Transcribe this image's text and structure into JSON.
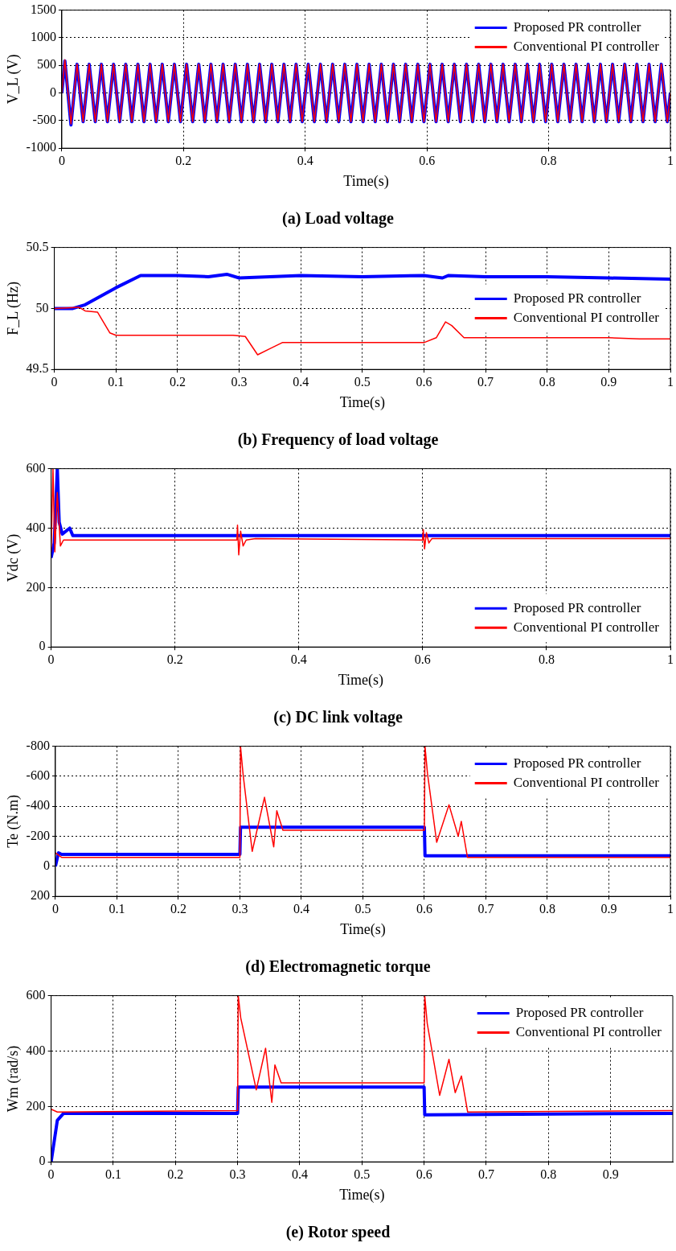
{
  "chart_data": [
    {
      "type": "line",
      "title": "(a) Load voltage",
      "xlabel": "Time(s)",
      "ylabel": "V_L (V)",
      "xlim": [
        0,
        1
      ],
      "ylim": [
        -1000,
        1500
      ],
      "xticks": [
        0,
        0.2,
        0.4,
        0.6,
        0.8,
        1
      ],
      "yticks": [
        -1000,
        -500,
        0,
        500,
        1000,
        1500
      ],
      "grid": true,
      "legend": "top right",
      "x": [
        0,
        0.005,
        0.015,
        0.025,
        0.035,
        0.045,
        0.055,
        0.065,
        0.075,
        0.085,
        0.095,
        0.105,
        0.115,
        0.125,
        0.135,
        0.145,
        0.155,
        0.165,
        0.175,
        0.185,
        0.195,
        0.205,
        0.215,
        0.225,
        0.235,
        0.245,
        0.255,
        0.265,
        0.275,
        0.285,
        0.295,
        0.305,
        0.315,
        0.325,
        0.335,
        0.345,
        0.355,
        0.365,
        0.375,
        0.385,
        0.395,
        0.405,
        0.415,
        0.425,
        0.435,
        0.445,
        0.455,
        0.465,
        0.475,
        0.485,
        0.495,
        0.505,
        0.515,
        0.525,
        0.535,
        0.545,
        0.555,
        0.565,
        0.575,
        0.585,
        0.595,
        0.605,
        0.615,
        0.625,
        0.635,
        0.645,
        0.655,
        0.665,
        0.675,
        0.685,
        0.695,
        0.705,
        0.715,
        0.725,
        0.735,
        0.745,
        0.755,
        0.765,
        0.775,
        0.785,
        0.795,
        0.805,
        0.815,
        0.825,
        0.835,
        0.845,
        0.855,
        0.865,
        0.875,
        0.885,
        0.895,
        0.905,
        0.915,
        0.925,
        0.935,
        0.945,
        0.955,
        0.965,
        0.975,
        0.985,
        0.995,
        1
      ],
      "series": [
        {
          "name": "Proposed PR controller",
          "color": "#0000ff",
          "values": [
            0,
            580,
            -580,
            520,
            -520,
            520,
            -520,
            520,
            -520,
            520,
            -520,
            520,
            -520,
            520,
            -520,
            520,
            -520,
            520,
            -520,
            520,
            -520,
            520,
            -520,
            520,
            -520,
            520,
            -520,
            520,
            -520,
            520,
            -520,
            520,
            -520,
            520,
            -520,
            520,
            -520,
            520,
            -520,
            520,
            -520,
            520,
            -520,
            520,
            -520,
            520,
            -520,
            520,
            -520,
            520,
            -520,
            520,
            -520,
            520,
            -520,
            520,
            -520,
            520,
            -520,
            520,
            -520,
            520,
            -520,
            520,
            -520,
            520,
            -520,
            520,
            -520,
            520,
            -520,
            520,
            -520,
            520,
            -520,
            520,
            -520,
            520,
            -520,
            520,
            -520,
            520,
            -520,
            520,
            -520,
            520,
            -520,
            520,
            -520,
            520,
            -520,
            520,
            -520,
            520,
            -520,
            520,
            -520,
            520,
            -520,
            520,
            -520,
            0
          ]
        },
        {
          "name": "Conventional PI controller",
          "color": "#ff0000",
          "values": [
            0,
            600,
            -560,
            520,
            -520,
            520,
            -520,
            520,
            -520,
            520,
            -520,
            520,
            -520,
            520,
            -520,
            520,
            -520,
            520,
            -520,
            520,
            -520,
            520,
            -520,
            520,
            -520,
            520,
            -520,
            520,
            -520,
            520,
            -520,
            520,
            -520,
            520,
            -520,
            520,
            -520,
            520,
            -520,
            520,
            -520,
            520,
            -520,
            520,
            -520,
            520,
            -520,
            520,
            -520,
            520,
            -520,
            520,
            -520,
            520,
            -520,
            520,
            -520,
            520,
            -520,
            520,
            -520,
            520,
            -520,
            520,
            -520,
            520,
            -520,
            520,
            -520,
            520,
            -520,
            520,
            -520,
            520,
            -520,
            520,
            -520,
            520,
            -520,
            520,
            -520,
            520,
            -520,
            520,
            -520,
            520,
            -520,
            520,
            -520,
            520,
            -520,
            520,
            -520,
            520,
            -520,
            520,
            -520,
            520,
            -520,
            520,
            -520,
            0
          ]
        }
      ]
    },
    {
      "type": "line",
      "title": "(b) Frequency of load voltage",
      "xlabel": "Time(s)",
      "ylabel": "F_L (Hz)",
      "xlim": [
        0,
        1
      ],
      "ylim": [
        49.5,
        50.5
      ],
      "xticks": [
        0,
        0.1,
        0.2,
        0.3,
        0.4,
        0.5,
        0.6,
        0.7,
        0.8,
        0.9,
        1
      ],
      "yticks": [
        49.5,
        50,
        50.5
      ],
      "grid": true,
      "legend": "right",
      "series": [
        {
          "name": "Proposed PR controller",
          "color": "#0000ff",
          "x": [
            0,
            0.03,
            0.05,
            0.1,
            0.14,
            0.2,
            0.25,
            0.28,
            0.3,
            0.4,
            0.5,
            0.6,
            0.63,
            0.64,
            0.7,
            0.8,
            0.9,
            1
          ],
          "values": [
            50,
            50,
            50.03,
            50.17,
            50.27,
            50.27,
            50.26,
            50.28,
            50.25,
            50.27,
            50.26,
            50.27,
            50.25,
            50.27,
            50.26,
            50.26,
            50.25,
            50.24
          ]
        },
        {
          "name": "Conventional PI controller",
          "color": "#ff0000",
          "x": [
            0,
            0.04,
            0.05,
            0.07,
            0.09,
            0.1,
            0.2,
            0.29,
            0.31,
            0.33,
            0.35,
            0.37,
            0.5,
            0.6,
            0.62,
            0.635,
            0.645,
            0.665,
            0.7,
            0.9,
            0.95,
            1
          ],
          "values": [
            50,
            50.01,
            49.98,
            49.97,
            49.8,
            49.78,
            49.78,
            49.78,
            49.77,
            49.62,
            49.67,
            49.72,
            49.72,
            49.72,
            49.76,
            49.89,
            49.86,
            49.76,
            49.76,
            49.76,
            49.75,
            49.75
          ]
        }
      ]
    },
    {
      "type": "line",
      "title": "(c) DC link voltage",
      "xlabel": "Time(s)",
      "ylabel": "Vdc (V)",
      "xlim": [
        0,
        1
      ],
      "ylim": [
        0,
        600
      ],
      "xticks": [
        0,
        0.2,
        0.4,
        0.6,
        0.8,
        1
      ],
      "yticks": [
        0,
        200,
        400,
        600
      ],
      "grid": true,
      "legend": "bottom right",
      "series": [
        {
          "name": "Proposed PR controller",
          "color": "#0000ff",
          "x": [
            0,
            0.005,
            0.01,
            0.013,
            0.018,
            0.03,
            0.035,
            0.3,
            0.6,
            1
          ],
          "values": [
            300,
            350,
            600,
            420,
            380,
            400,
            375,
            375,
            375,
            375
          ]
        },
        {
          "name": "Conventional PI controller",
          "color": "#ff0000",
          "x": [
            0,
            0.003,
            0.006,
            0.01,
            0.015,
            0.02,
            0.3,
            0.301,
            0.303,
            0.306,
            0.31,
            0.315,
            0.33,
            0.6,
            0.601,
            0.603,
            0.606,
            0.61,
            0.615,
            1
          ],
          "values": [
            320,
            600,
            320,
            520,
            340,
            360,
            360,
            410,
            310,
            390,
            340,
            360,
            365,
            360,
            395,
            330,
            385,
            350,
            365,
            365
          ]
        }
      ]
    },
    {
      "type": "line",
      "title": "(d) Electromagnetic torque",
      "xlabel": "Time(s)",
      "ylabel": "Te (N.m)",
      "xlim": [
        0,
        1
      ],
      "ylim": [
        200,
        -800
      ],
      "xticks": [
        0,
        0.1,
        0.2,
        0.3,
        0.4,
        0.5,
        0.6,
        0.7,
        0.8,
        0.9,
        1
      ],
      "yticks": [
        200,
        0,
        -200,
        -400,
        -600,
        -800
      ],
      "grid": true,
      "legend": "top right",
      "series": [
        {
          "name": "Proposed PR controller",
          "color": "#0000ff",
          "x": [
            0,
            0.005,
            0.01,
            0.3,
            0.301,
            0.6,
            0.601,
            1
          ],
          "values": [
            0,
            -90,
            -80,
            -80,
            -260,
            -260,
            -70,
            -70
          ]
        },
        {
          "name": "Conventional PI controller",
          "color": "#ff0000",
          "x": [
            0,
            0.01,
            0.3,
            0.301,
            0.305,
            0.32,
            0.34,
            0.355,
            0.36,
            0.37,
            0.6,
            0.601,
            0.605,
            0.62,
            0.64,
            0.655,
            0.66,
            0.67,
            1
          ],
          "values": [
            -90,
            -60,
            -60,
            -800,
            -620,
            -100,
            -460,
            -130,
            -370,
            -240,
            -240,
            -800,
            -620,
            -160,
            -410,
            -200,
            -300,
            -60,
            -60
          ]
        }
      ]
    },
    {
      "type": "line",
      "title": "(e) Rotor speed",
      "xlabel": "Time(s)",
      "ylabel": "Wm (rad/s)",
      "xlim": [
        0,
        1
      ],
      "ylim": [
        0,
        600
      ],
      "xticks": [
        0,
        0.1,
        0.2,
        0.3,
        0.4,
        0.5,
        0.6,
        0.7,
        0.8,
        0.9
      ],
      "yticks": [
        0,
        200,
        400,
        600
      ],
      "grid": true,
      "legend": "top right",
      "series": [
        {
          "name": "Proposed PR controller",
          "color": "#0000ff",
          "x": [
            0,
            0.01,
            0.02,
            0.3,
            0.301,
            0.6,
            0.601,
            1
          ],
          "values": [
            0,
            150,
            175,
            175,
            270,
            270,
            170,
            175
          ]
        },
        {
          "name": "Conventional PI controller",
          "color": "#ff0000",
          "x": [
            0,
            0.01,
            0.3,
            0.301,
            0.305,
            0.33,
            0.345,
            0.355,
            0.36,
            0.37,
            0.6,
            0.601,
            0.605,
            0.625,
            0.64,
            0.65,
            0.66,
            0.67,
            1
          ],
          "values": [
            190,
            180,
            185,
            600,
            520,
            260,
            410,
            215,
            350,
            285,
            285,
            600,
            500,
            240,
            370,
            250,
            310,
            180,
            185
          ]
        }
      ]
    }
  ]
}
